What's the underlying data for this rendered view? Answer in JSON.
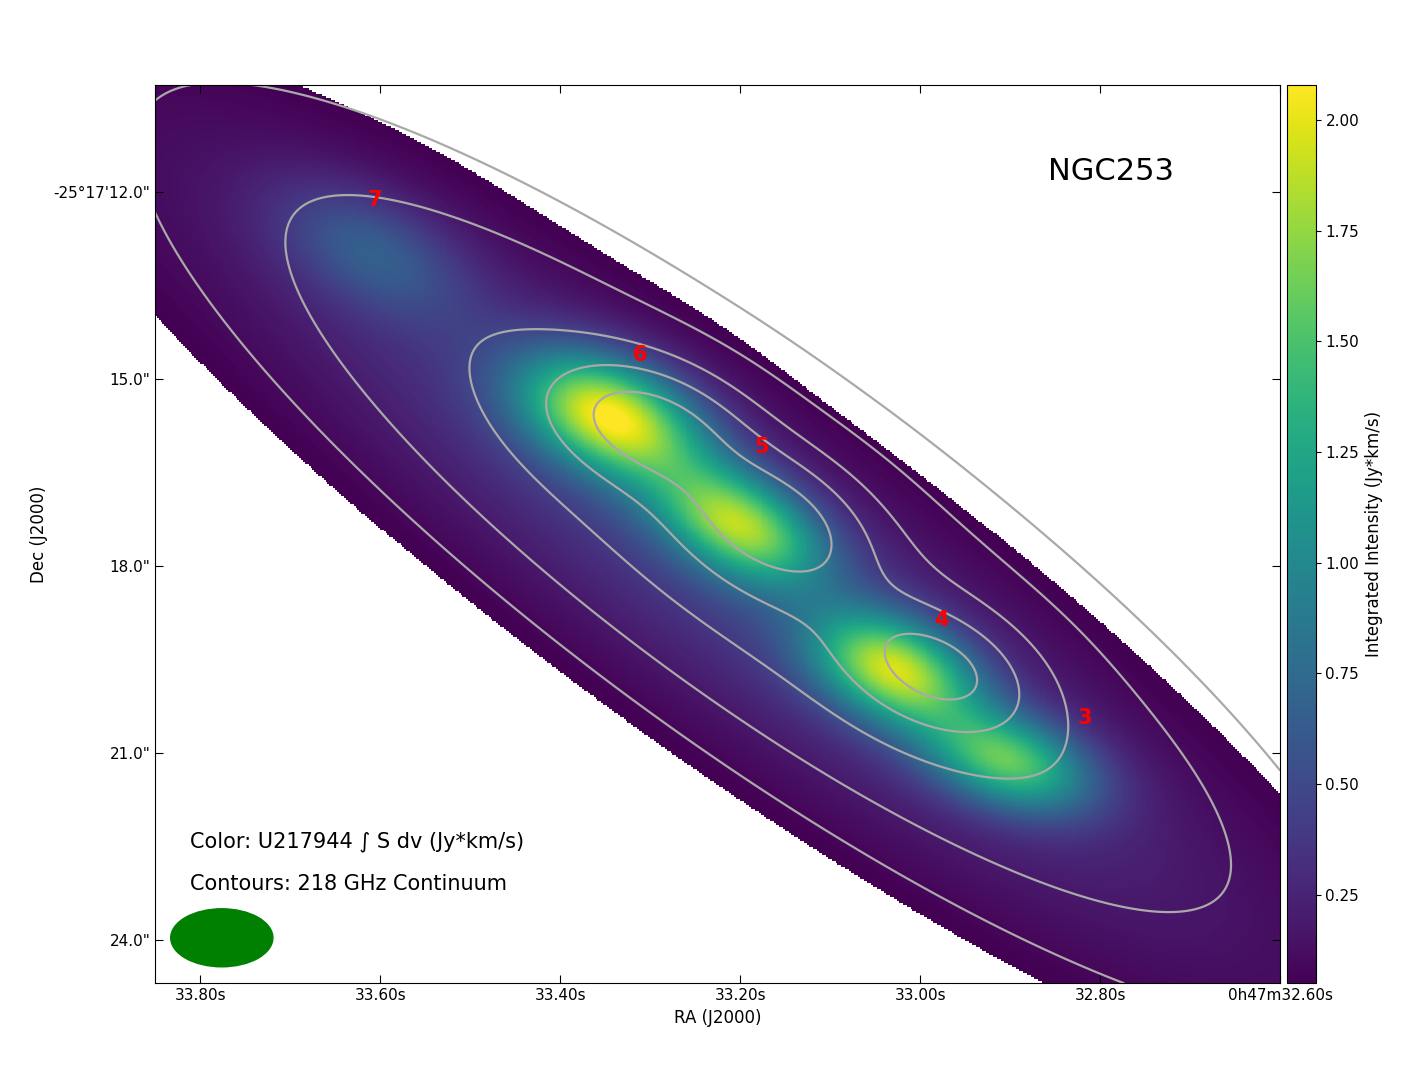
{
  "chart_data": {
    "type": "heatmap",
    "title": "NGC253",
    "xlabel": "RA (J2000)",
    "ylabel": "Dec (J2000)",
    "annotations": [
      "Color: U217944 ∫ S dv (Jy*km/s)",
      "Contours: 218 GHz Continuum"
    ],
    "xlim": [
      33.85,
      32.6
    ],
    "ylim": [
      24.69,
      10.28
    ],
    "xticks": [
      {
        "value": 33.8,
        "label": "33.80s"
      },
      {
        "value": 33.6,
        "label": "33.60s"
      },
      {
        "value": 33.4,
        "label": "33.40s"
      },
      {
        "value": 33.2,
        "label": "33.20s"
      },
      {
        "value": 33.0,
        "label": "33.00s"
      },
      {
        "value": 32.8,
        "label": "32.80s"
      },
      {
        "value": 32.6,
        "label": "0h47m32.60s"
      }
    ],
    "yticks": [
      {
        "value": 12.0,
        "label": "-25°17'12.0\""
      },
      {
        "value": 15.0,
        "label": "15.0\""
      },
      {
        "value": 18.0,
        "label": "18.0\""
      },
      {
        "value": 21.0,
        "label": "21.0\""
      },
      {
        "value": 24.0,
        "label": "24.0\""
      }
    ],
    "colorbar": {
      "label": "Integrated Intensity (Jy*km/s)",
      "range": [
        0.05,
        2.08
      ],
      "ticks": [
        {
          "value": 0.25,
          "label": "0.25"
        },
        {
          "value": 0.5,
          "label": "0.50"
        },
        {
          "value": 0.75,
          "label": "0.75"
        },
        {
          "value": 1.0,
          "label": "1.00"
        },
        {
          "value": 1.25,
          "label": "1.25"
        },
        {
          "value": 1.5,
          "label": "1.50"
        },
        {
          "value": 1.75,
          "label": "1.75"
        },
        {
          "value": 2.0,
          "label": "2.00"
        }
      ]
    },
    "emission": [
      {
        "ra": 33.344,
        "dec": 15.58,
        "peak": 1.75,
        "major": 1.0,
        "minor": 0.6,
        "angle": 25
      },
      {
        "ra": 33.2,
        "dec": 17.34,
        "peak": 1.45,
        "major": 0.95,
        "minor": 0.55,
        "angle": 30
      },
      {
        "ra": 33.028,
        "dec": 19.67,
        "peak": 1.55,
        "major": 0.9,
        "minor": 0.55,
        "angle": 25
      },
      {
        "ra": 32.9,
        "dec": 21.15,
        "peak": 1.25,
        "major": 0.9,
        "minor": 0.5,
        "angle": 20
      },
      {
        "ra": 33.61,
        "dec": 12.93,
        "peak": 0.45,
        "major": 1.1,
        "minor": 0.6,
        "angle": 30
      },
      {
        "ra": 33.22,
        "dec": 17.9,
        "peak": 0.45,
        "major": 6.5,
        "minor": 1.4,
        "angle": 38
      }
    ],
    "continuum": [
      {
        "ra": 33.3,
        "dec": 15.7,
        "peak": 0.55,
        "major": 1.0,
        "minor": 0.6,
        "angle": 20
      },
      {
        "ra": 33.16,
        "dec": 17.25,
        "peak": 0.55,
        "major": 1.0,
        "minor": 0.65,
        "angle": 30
      },
      {
        "ra": 32.98,
        "dec": 19.65,
        "peak": 0.5,
        "major": 0.95,
        "minor": 0.6,
        "angle": 25
      },
      {
        "ra": 33.18,
        "dec": 17.8,
        "peak": 0.45,
        "major": 5.8,
        "minor": 1.5,
        "angle": 38
      }
    ],
    "contour_levels": [
      0.06,
      0.14,
      0.3,
      0.5,
      0.75
    ],
    "region_labels": [
      {
        "text": "7",
        "ra": 33.606,
        "dec": 12.13
      },
      {
        "text": "6",
        "ra": 33.311,
        "dec": 14.61
      },
      {
        "text": "5",
        "ra": 33.176,
        "dec": 16.09
      },
      {
        "text": "4",
        "ra": 32.976,
        "dec": 18.87
      },
      {
        "text": "3",
        "ra": 32.817,
        "dec": 20.44
      }
    ],
    "beam": {
      "ra": 33.776,
      "dec": 23.96,
      "major": 1.54,
      "minor": 0.93
    }
  }
}
